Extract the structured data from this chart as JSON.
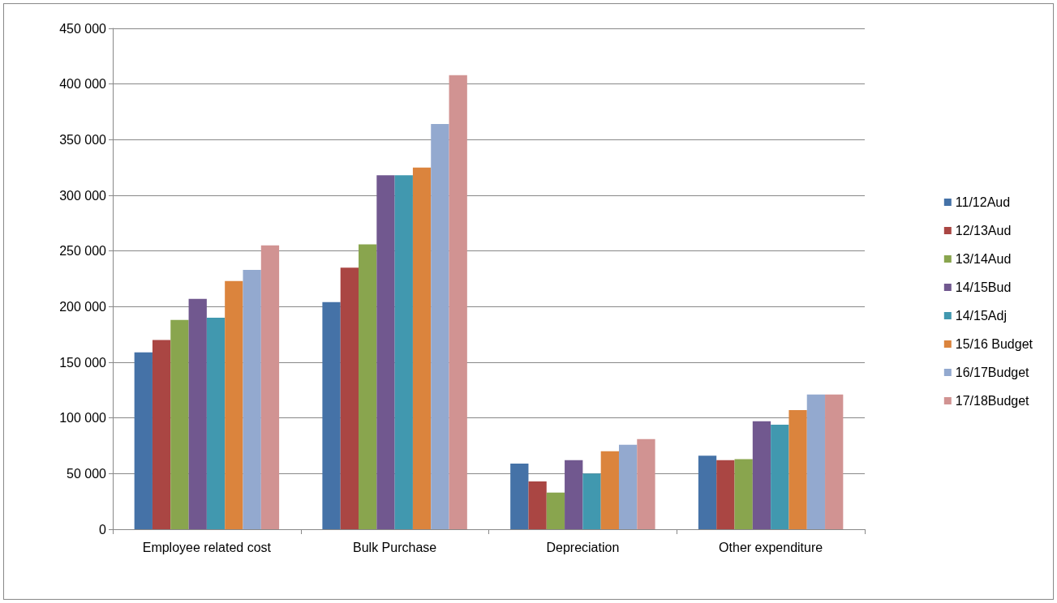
{
  "chart_data": {
    "type": "bar",
    "categories": [
      "Employee related cost",
      "Bulk Purchase",
      "Depreciation",
      "Other expenditure"
    ],
    "series": [
      {
        "name": "11/12Aud",
        "color": "#4572a7",
        "values": [
          159000,
          204000,
          59000,
          66000
        ]
      },
      {
        "name": "12/13Aud",
        "color": "#aa4643",
        "values": [
          170000,
          235000,
          43000,
          62000
        ]
      },
      {
        "name": "13/14Aud",
        "color": "#89a54e",
        "values": [
          188000,
          256000,
          33000,
          63000
        ]
      },
      {
        "name": "14/15Bud",
        "color": "#71588f",
        "values": [
          207000,
          318000,
          62000,
          97000
        ]
      },
      {
        "name": "14/15Adj",
        "color": "#4198af",
        "values": [
          190000,
          318000,
          50000,
          94000
        ]
      },
      {
        "name": "15/16 Budget",
        "color": "#db843d",
        "values": [
          223000,
          325000,
          70000,
          107000
        ]
      },
      {
        "name": "16/17Budget",
        "color": "#93a9cf",
        "values": [
          233000,
          364000,
          76000,
          121000
        ]
      },
      {
        "name": "17/18Budget",
        "color": "#d19392",
        "values": [
          255000,
          408000,
          81000,
          121000
        ]
      }
    ],
    "ylim": [
      0,
      450000
    ],
    "yticks": [
      {
        "value": 0,
        "label": "0"
      },
      {
        "value": 50000,
        "label": "50 000"
      },
      {
        "value": 100000,
        "label": "100 000"
      },
      {
        "value": 150000,
        "label": "150 000"
      },
      {
        "value": 200000,
        "label": "200 000"
      },
      {
        "value": 250000,
        "label": "250 000"
      },
      {
        "value": 300000,
        "label": "300 000"
      },
      {
        "value": 350000,
        "label": "350 000"
      },
      {
        "value": 400000,
        "label": "400 000"
      },
      {
        "value": 450000,
        "label": "450 000"
      }
    ],
    "grid": "y",
    "legend": "right"
  }
}
